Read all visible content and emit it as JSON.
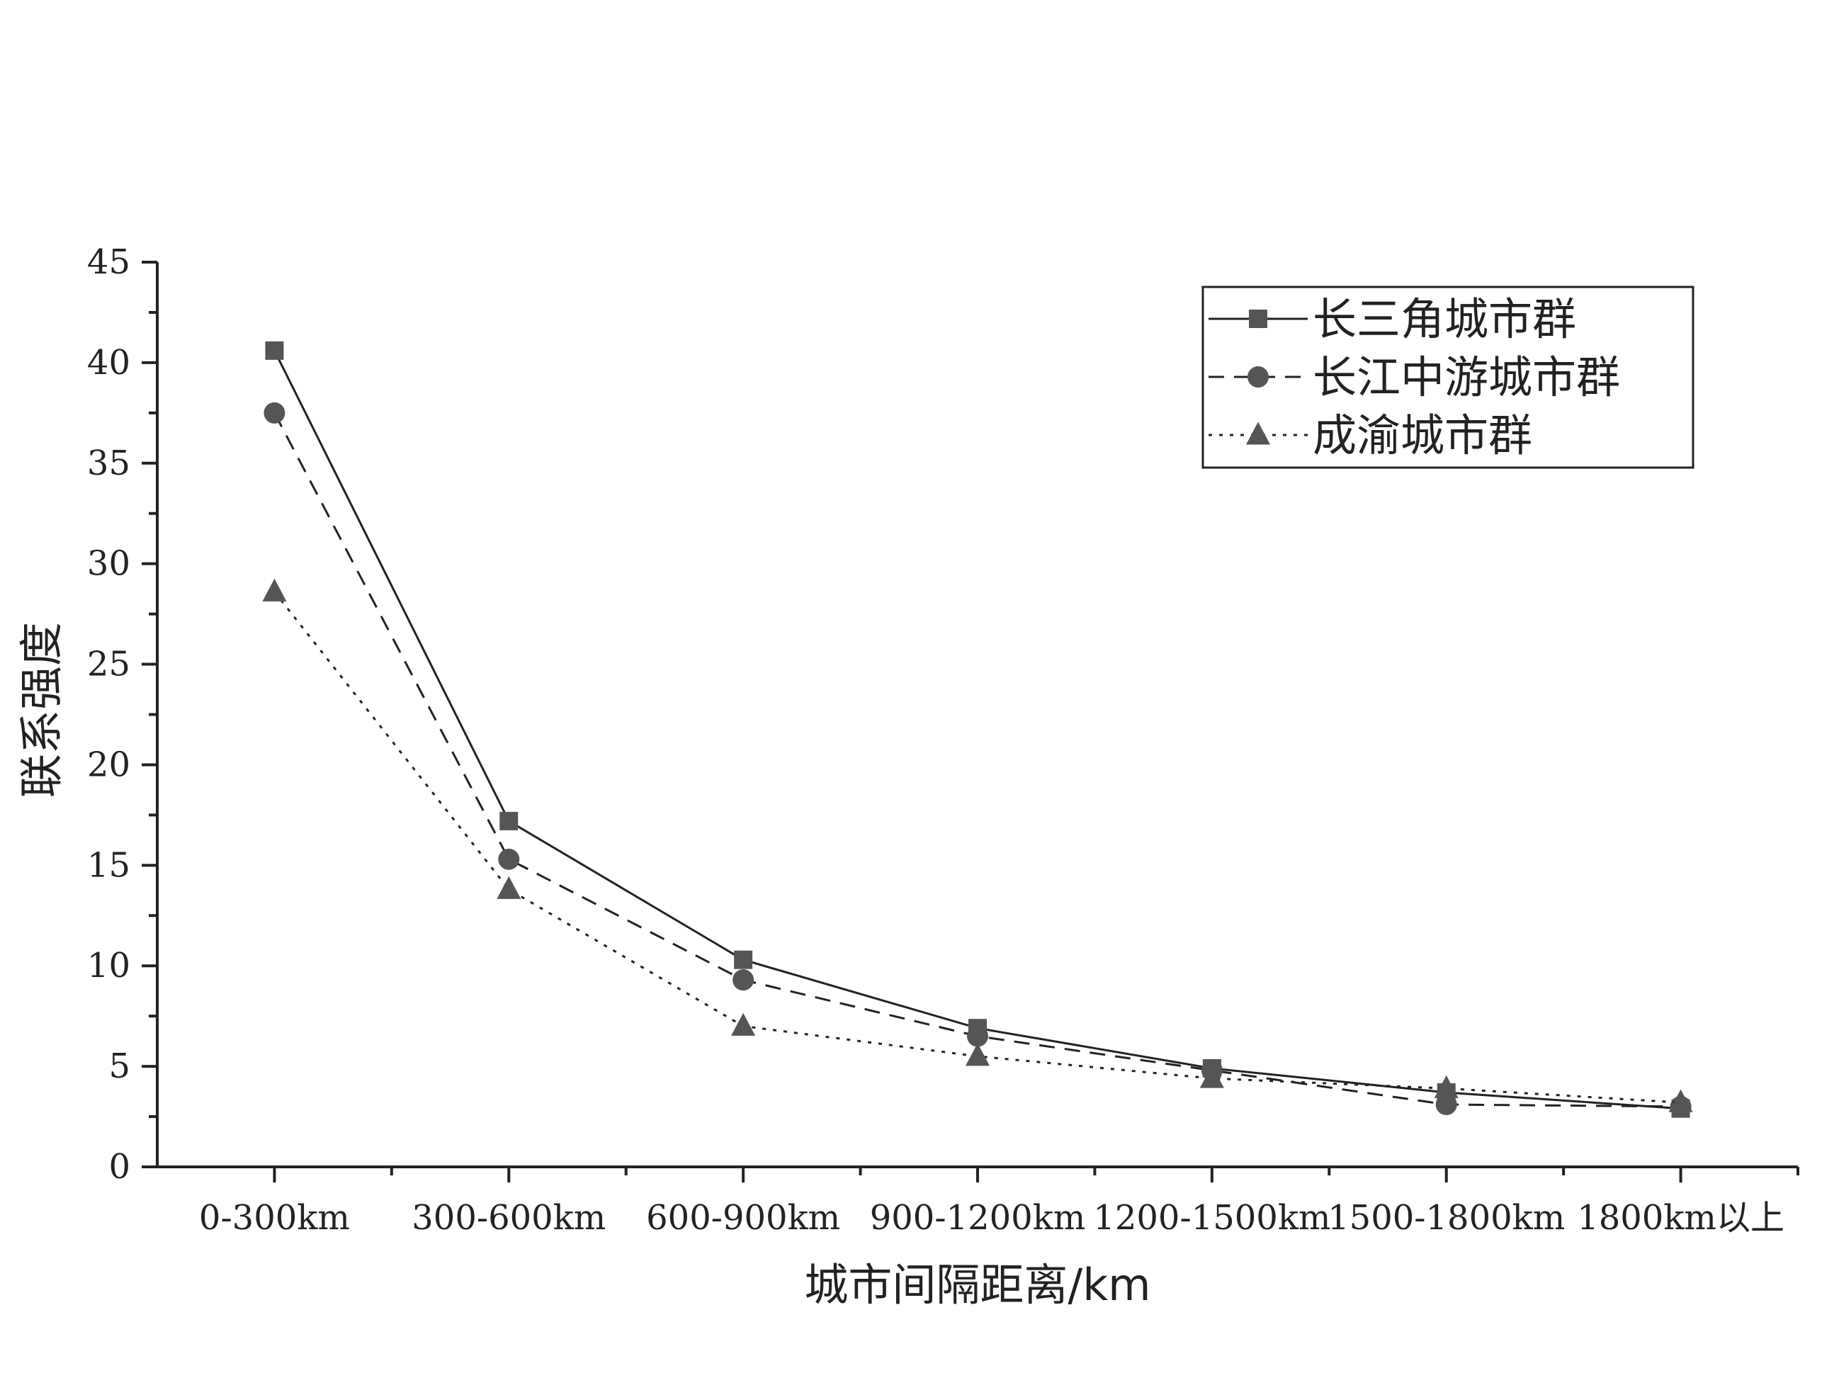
{
  "chart_data": {
    "type": "line",
    "title": "",
    "xlabel": "城市间隔距离/km",
    "ylabel": "联系强度",
    "categories": [
      "0-300km",
      "300-600km",
      "600-900km",
      "900-1200km",
      "1200-1500km",
      "1500-1800km",
      "1800km以上"
    ],
    "ylim": [
      0,
      45
    ],
    "yticks": [
      0,
      5,
      10,
      15,
      20,
      25,
      30,
      35,
      40,
      45
    ],
    "grid": false,
    "legend_position": "top-right",
    "series": [
      {
        "name": "长三角城市群",
        "values": [
          40.6,
          17.2,
          10.3,
          6.9,
          4.9,
          3.7,
          2.9
        ],
        "marker": "square",
        "line_style": "solid",
        "color": "#555555"
      },
      {
        "name": "长江中游城市群",
        "values": [
          37.5,
          15.3,
          9.3,
          6.5,
          4.8,
          3.1,
          3.0
        ],
        "marker": "circle",
        "line_style": "dashed",
        "color": "#555555"
      },
      {
        "name": "成渝城市群",
        "values": [
          28.6,
          13.8,
          7.0,
          5.5,
          4.4,
          3.9,
          3.2
        ],
        "marker": "triangle",
        "line_style": "dotted",
        "color": "#555555"
      }
    ]
  }
}
